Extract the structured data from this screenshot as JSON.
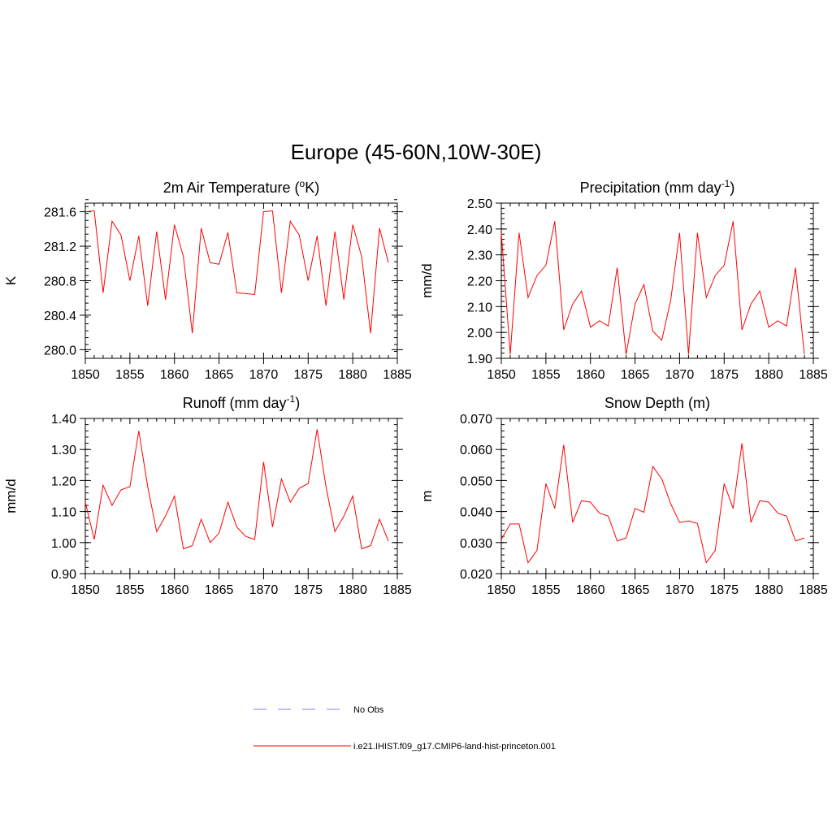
{
  "figure": {
    "title": "Europe (45-60N,10W-30E)"
  },
  "colors": {
    "model_line": "#ff0000",
    "obs_line": "#9999ff",
    "axis": "#000000"
  },
  "legend": {
    "entries": [
      {
        "label": "No Obs",
        "style": "dashed",
        "color": "#9999ff"
      },
      {
        "label": "i.e21.IHIST.f09_g17.CMIP6-land-hist-princeton.001",
        "style": "solid",
        "color": "#ff0000"
      }
    ]
  },
  "chart_data": [
    {
      "type": "line",
      "title": "2m Air Temperature (",
      "title_sup": "o",
      "title_tail": "K)",
      "ylabel": "K",
      "xlim": [
        1850,
        1885
      ],
      "ylim": [
        279.9,
        281.7
      ],
      "xticks": [
        1850,
        1855,
        1860,
        1865,
        1870,
        1875,
        1880,
        1885
      ],
      "yticks": [
        280.0,
        280.4,
        280.8,
        281.2,
        281.6
      ],
      "ytick_decimals": 1,
      "series": [
        {
          "x": [
            1850,
            1851,
            1852,
            1853,
            1854,
            1855,
            1856,
            1857,
            1858,
            1859,
            1860,
            1861,
            1862,
            1863,
            1864,
            1865,
            1866,
            1867,
            1868,
            1869,
            1870,
            1871,
            1872,
            1873,
            1874,
            1875,
            1876,
            1877,
            1878,
            1879,
            1880,
            1881,
            1882,
            1883,
            1884
          ],
          "values": [
            281.6,
            281.61,
            280.66,
            281.49,
            281.33,
            280.8,
            281.32,
            280.51,
            281.37,
            280.58,
            281.45,
            281.08,
            280.19,
            281.41,
            281.01,
            280.99,
            281.36,
            280.66,
            280.65,
            280.64,
            281.6,
            281.61,
            280.66,
            281.49,
            281.33,
            280.8,
            281.32,
            280.51,
            281.37,
            280.58,
            281.45,
            281.08,
            280.19,
            281.41,
            281.01
          ]
        }
      ]
    },
    {
      "type": "line",
      "title": "Precipitation (mm day",
      "title_sup": "-1",
      "title_tail": ")",
      "ylabel": "mm/d",
      "xlim": [
        1850,
        1885
      ],
      "ylim": [
        1.9,
        2.5
      ],
      "xticks": [
        1850,
        1855,
        1860,
        1865,
        1870,
        1875,
        1880,
        1885
      ],
      "yticks": [
        1.9,
        2.0,
        2.1,
        2.2,
        2.3,
        2.4,
        2.5
      ],
      "ytick_decimals": 2,
      "series": [
        {
          "x": [
            1850,
            1851,
            1852,
            1853,
            1854,
            1855,
            1856,
            1857,
            1858,
            1859,
            1860,
            1861,
            1862,
            1863,
            1864,
            1865,
            1866,
            1867,
            1868,
            1869,
            1870,
            1871,
            1872,
            1873,
            1874,
            1875,
            1876,
            1877,
            1878,
            1879,
            1880,
            1881,
            1882,
            1883,
            1884
          ],
          "values": [
            2.385,
            1.915,
            2.385,
            2.135,
            2.22,
            2.26,
            2.43,
            2.01,
            2.11,
            2.16,
            2.02,
            2.045,
            2.025,
            2.25,
            1.915,
            2.11,
            2.185,
            2.005,
            1.97,
            2.125,
            2.385,
            1.915,
            2.385,
            2.135,
            2.22,
            2.26,
            2.43,
            2.01,
            2.11,
            2.16,
            2.02,
            2.045,
            2.025,
            2.25,
            1.915
          ]
        }
      ]
    },
    {
      "type": "line",
      "title": "Runoff (mm day",
      "title_sup": "-1",
      "title_tail": ")",
      "ylabel": "mm/d",
      "xlim": [
        1850,
        1885
      ],
      "ylim": [
        0.9,
        1.4
      ],
      "xticks": [
        1850,
        1855,
        1860,
        1865,
        1870,
        1875,
        1880,
        1885
      ],
      "yticks": [
        0.9,
        1.0,
        1.1,
        1.2,
        1.3,
        1.4
      ],
      "ytick_decimals": 2,
      "series": [
        {
          "x": [
            1850,
            1851,
            1852,
            1853,
            1854,
            1855,
            1856,
            1857,
            1858,
            1859,
            1860,
            1861,
            1862,
            1863,
            1864,
            1865,
            1866,
            1867,
            1868,
            1869,
            1870,
            1871,
            1872,
            1873,
            1874,
            1875,
            1876,
            1877,
            1878,
            1879,
            1880,
            1881,
            1882,
            1883,
            1884
          ],
          "values": [
            1.13,
            1.01,
            1.185,
            1.12,
            1.17,
            1.18,
            1.36,
            1.18,
            1.035,
            1.085,
            1.15,
            0.98,
            0.99,
            1.075,
            1.0,
            1.03,
            1.13,
            1.05,
            1.02,
            1.01,
            1.26,
            1.05,
            1.205,
            1.13,
            1.175,
            1.19,
            1.365,
            1.18,
            1.035,
            1.085,
            1.15,
            0.98,
            0.99,
            1.075,
            1.005
          ]
        }
      ]
    },
    {
      "type": "line",
      "title": "Snow Depth (m)",
      "title_sup": "",
      "title_tail": "",
      "ylabel": "m",
      "xlim": [
        1850,
        1885
      ],
      "ylim": [
        0.02,
        0.07
      ],
      "xticks": [
        1850,
        1855,
        1860,
        1865,
        1870,
        1875,
        1880,
        1885
      ],
      "yticks": [
        0.02,
        0.03,
        0.04,
        0.05,
        0.06,
        0.07
      ],
      "ytick_decimals": 3,
      "series": [
        {
          "x": [
            1850,
            1851,
            1852,
            1853,
            1854,
            1855,
            1856,
            1857,
            1858,
            1859,
            1860,
            1861,
            1862,
            1863,
            1864,
            1865,
            1866,
            1867,
            1868,
            1869,
            1870,
            1871,
            1872,
            1873,
            1874,
            1875,
            1876,
            1877,
            1878,
            1879,
            1880,
            1881,
            1882,
            1883,
            1884
          ],
          "values": [
            0.031,
            0.036,
            0.036,
            0.0235,
            0.0275,
            0.049,
            0.041,
            0.0615,
            0.0365,
            0.0435,
            0.043,
            0.0395,
            0.0385,
            0.0305,
            0.0315,
            0.041,
            0.0398,
            0.0545,
            0.0505,
            0.0425,
            0.0365,
            0.037,
            0.0362,
            0.0235,
            0.0275,
            0.049,
            0.041,
            0.062,
            0.0365,
            0.0435,
            0.043,
            0.0395,
            0.0385,
            0.0305,
            0.0315
          ]
        }
      ]
    }
  ]
}
